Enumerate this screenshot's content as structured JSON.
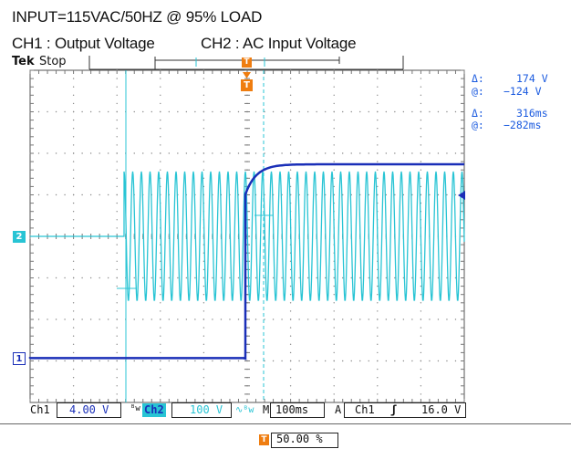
{
  "caption": {
    "line1": "INPUT=115VAC/50HZ @ 95% LOAD",
    "ch1_label": "CH1 : Output Voltage",
    "ch2_label": "CH2 : AC Input Voltage"
  },
  "scope": {
    "brand": "Tek",
    "run_state": "Stop",
    "trigger_marker": "T",
    "ch1_marker": "1",
    "ch2_marker": "2"
  },
  "cursor_readout": {
    "v_delta_symbol": "Δ:",
    "v_delta": "174 V",
    "v_at_symbol": "@:",
    "v_at": "−124 V",
    "t_delta_symbol": "Δ:",
    "t_delta": "316ms",
    "t_at_symbol": "@:",
    "t_at": "−282ms"
  },
  "status_bar": {
    "ch1_name": "Ch1",
    "ch1_scale": "4.00 V",
    "ch1_bw": "ᴮw",
    "ch2_name": "Ch2",
    "ch2_scale": "100 V",
    "ch2_coupling": "∿ᴮw",
    "timebase_label": "M",
    "timebase": "100ms",
    "trigger_mode": "A",
    "trigger_source": "Ch1",
    "trigger_slope": "ʃ",
    "trigger_level": "16.0 V",
    "trigger_position_marker": "T",
    "trigger_position": "50.00 %"
  },
  "colors": {
    "ch1": "#1a2fb8",
    "ch2": "#28c4d4",
    "grid": "#9aa0a6",
    "readout": "#1a5adf",
    "trigger": "#ef7d10"
  }
}
